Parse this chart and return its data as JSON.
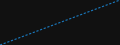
{
  "x": [
    0,
    1
  ],
  "y": [
    0,
    1
  ],
  "line_color": "#1a7abf",
  "linewidth": 0.8,
  "background_color": "#111111",
  "dashes": [
    2,
    1.5
  ]
}
